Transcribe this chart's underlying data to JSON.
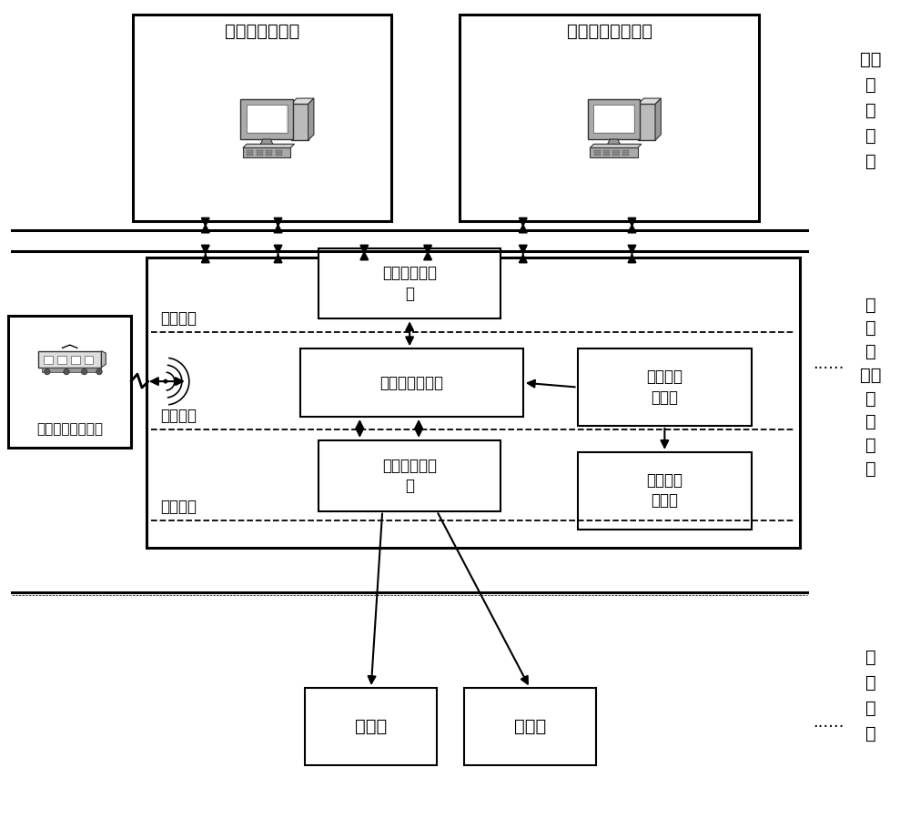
{
  "bg": "#ffffff",
  "remote_center_label": "远程\n控\n制\n中\n心",
  "distributed_label": "分\n布\n式\n道岔\n控\n制\n系\n统",
  "trackside_label": "轨\n旁\n设\n备",
  "auto_sys": "自动化操作系统",
  "remote_mon": "远程监测维护系统",
  "vehicle": "有轨车辆车载设备",
  "local_op": "现地操作子系\n统",
  "logic_ctrl": "逻辑控制子系统",
  "smart_pwr": "智能电源\n子系统",
  "drive_col": "驱动采集子系\n统",
  "train_pos": "列车定位\n子系统",
  "turnout": "转辙机",
  "signal_m": "信号机",
  "hmi": "人机交互",
  "interlock": "联锁运算",
  "exec_disp": "执行表示",
  "ellipsis": "......"
}
